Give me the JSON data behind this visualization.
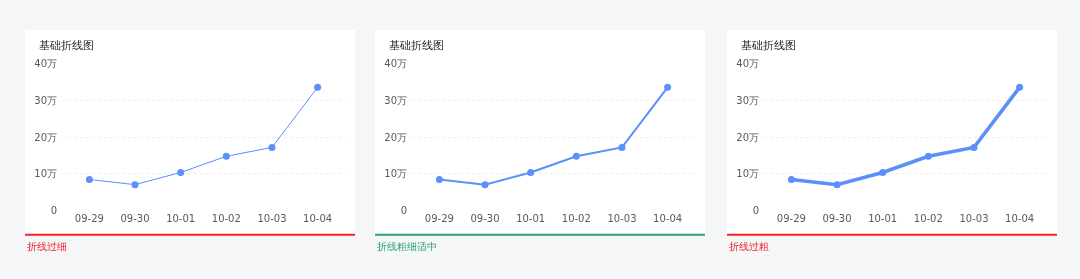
{
  "chart_data": [
    {
      "type": "line",
      "title": "基础折线图",
      "categories": [
        "09-29",
        "09-30",
        "10-01",
        "10-02",
        "10-03",
        "10-04"
      ],
      "values": [
        8.5,
        7.1,
        10.4,
        14.8,
        17.2,
        33.5
      ],
      "color": "#5b8ff9",
      "ylim": [
        0,
        40
      ],
      "yticks": [
        0,
        {
          "value": 10,
          "label": "10万"
        },
        {
          "value": 20,
          "label": "20万"
        },
        {
          "value": 30,
          "label": "30万"
        },
        {
          "value": 40,
          "label": "40万"
        }
      ],
      "grid": "y",
      "marker": "circle",
      "line_style": "solid",
      "annotations": [
        "折线过细"
      ]
    },
    {
      "type": "line",
      "title": "基础折线图",
      "categories": [
        "09-29",
        "09-30",
        "10-01",
        "10-02",
        "10-03",
        "10-04"
      ],
      "values": [
        8.5,
        7.1,
        10.4,
        14.8,
        17.2,
        33.5
      ],
      "color": "#5b8ff9",
      "ylim": [
        0,
        40
      ],
      "yticks": [
        0,
        {
          "value": 10,
          "label": "10万"
        },
        {
          "value": 20,
          "label": "20万"
        },
        {
          "value": 30,
          "label": "30万"
        },
        {
          "value": 40,
          "label": "40万"
        }
      ],
      "grid": "y",
      "marker": "circle",
      "line_style": "solid",
      "annotations": [
        "折线粗细适中"
      ]
    },
    {
      "type": "line",
      "title": "基础折线图",
      "categories": [
        "09-29",
        "09-30",
        "10-01",
        "10-02",
        "10-03",
        "10-04"
      ],
      "values": [
        8.5,
        7.1,
        10.4,
        14.8,
        17.2,
        33.5
      ],
      "color": "#5b8ff9",
      "ylim": [
        0,
        40
      ],
      "yticks": [
        0,
        {
          "value": 10,
          "label": "10万"
        },
        {
          "value": 20,
          "label": "20万"
        },
        {
          "value": 30,
          "label": "30万"
        },
        {
          "value": 40,
          "label": "40万"
        }
      ],
      "grid": "y",
      "marker": "circle",
      "line_style": "solid",
      "annotations": [
        "折线过粗"
      ]
    }
  ]
}
